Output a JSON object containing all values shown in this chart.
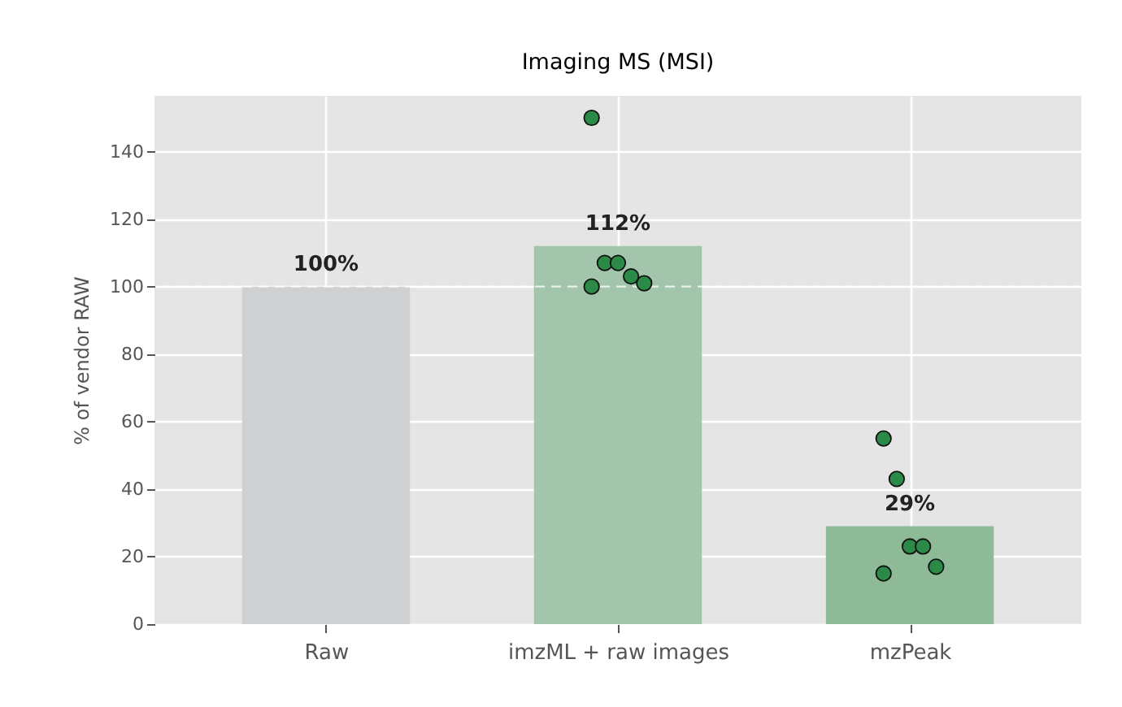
{
  "chart_data": {
    "type": "bar",
    "title": "Imaging MS (MSI)",
    "ylabel": "% of vendor RAW",
    "categories": [
      "Raw",
      "imzML + raw images",
      "mzPeak"
    ],
    "series": [
      {
        "values": [
          100,
          112,
          29
        ],
        "colors": [
          "#cfd0d2",
          "#a2c5ab",
          "#8fba98"
        ],
        "value_labels": [
          "100%",
          "112%",
          "29%"
        ]
      },
      {
        "type": "scatter",
        "x": [
          "imzML + raw images",
          "imzML + raw images",
          "imzML + raw images",
          "imzML + raw images",
          "imzML + raw images",
          "imzML + raw images",
          "mzPeak",
          "mzPeak",
          "mzPeak",
          "mzPeak",
          "mzPeak",
          "mzPeak"
        ],
        "values": [
          150,
          107,
          107,
          103,
          101,
          100,
          55,
          43,
          23,
          23,
          17,
          15
        ],
        "color": "#2b8a47",
        "marker": "circle"
      }
    ],
    "ylim": [
      0,
      156.5
    ],
    "yticks": [
      0,
      20,
      40,
      60,
      80,
      100,
      120,
      140
    ],
    "grid": true,
    "ref_lines": [
      {
        "axis": "y",
        "value": 100,
        "color": "#ffffff",
        "line_style": "dashed"
      }
    ]
  }
}
